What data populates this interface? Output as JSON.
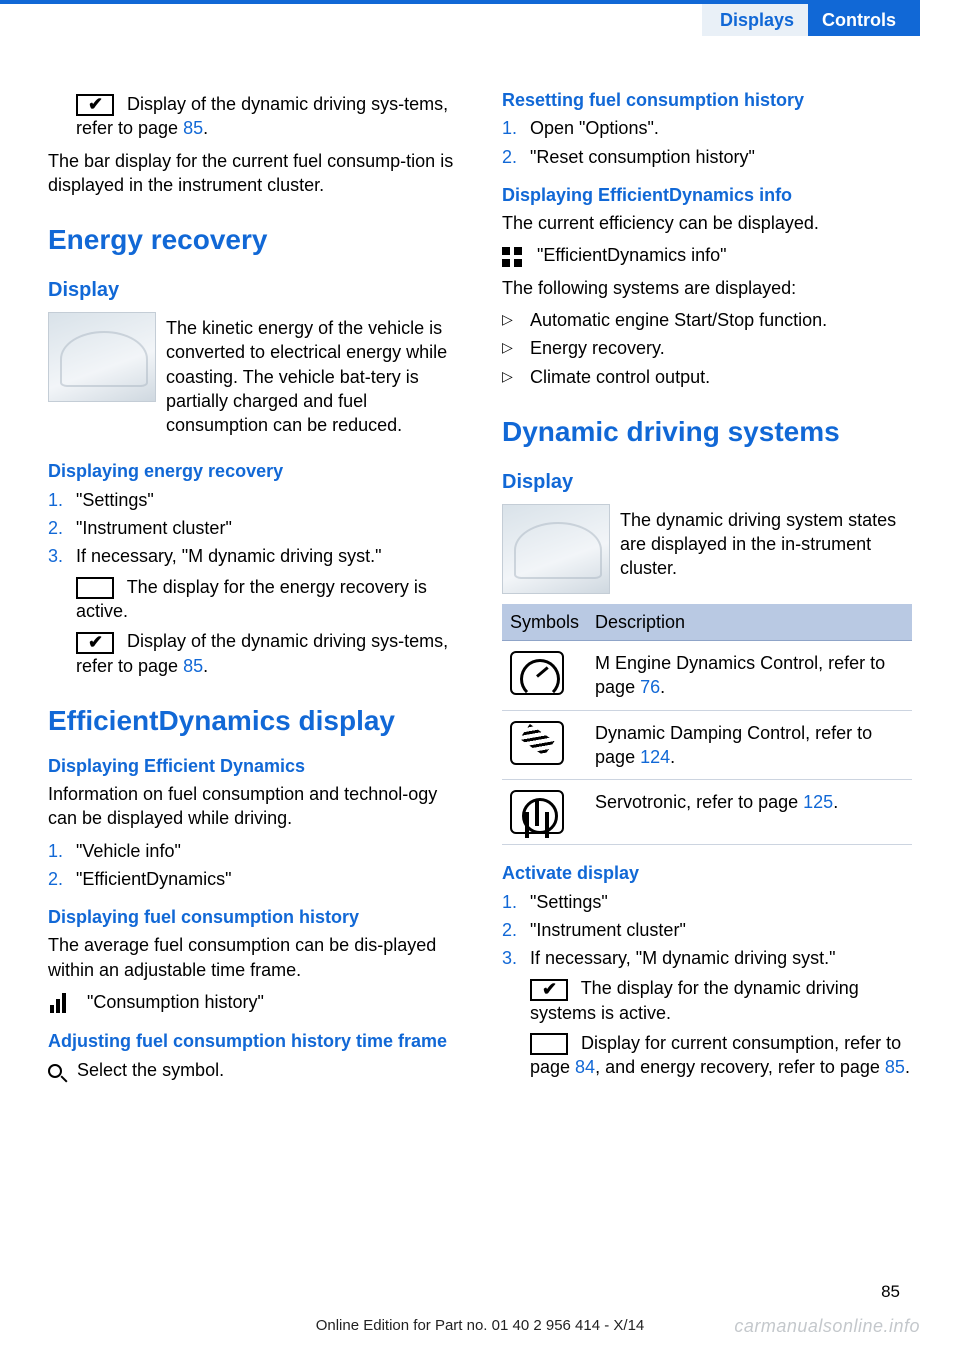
{
  "header": {
    "section": "Displays",
    "chapter": "Controls"
  },
  "left": {
    "intro_icon_text": "   Display of the dynamic driving sys‐tems, refer to page ",
    "intro_link": "85",
    "intro_after": ".",
    "bar_text": "The bar display for the current fuel consump‐tion is displayed in the instrument cluster.",
    "energy_h1": "Energy recovery",
    "display_h2": "Display",
    "display_body": "The kinetic energy of the vehicle is converted to electrical energy while coasting. The vehicle bat‐tery is partially charged and fuel consumption can be reduced.",
    "disp_er_h3": "Displaying energy recovery",
    "er_steps": [
      "\"Settings\"",
      "\"Instrument cluster\"",
      "If necessary, \"M dynamic driving syst.\""
    ],
    "er_sub1": "  The display for the energy recovery is active.",
    "er_sub2a": "   Display of the dynamic driving sys‐tems, refer to page ",
    "er_sub2_link": "85",
    "er_sub2b": ".",
    "effd_h1": "EfficientDynamics display",
    "effd_h3a": "Displaying Efficient Dynamics",
    "effd_body": "Information on fuel consumption and technol‐ogy can be displayed while driving.",
    "effd_steps": [
      "\"Vehicle info\"",
      "\"EfficientDynamics\""
    ],
    "fch_h3": "Displaying fuel consumption history",
    "fch_body": "The average fuel consumption can be dis‐played within an adjustable time frame.",
    "fch_item": "\"Consumption history\"",
    "adj_h3": "Adjusting fuel consumption history time frame",
    "adj_item": "Select the symbol."
  },
  "right": {
    "reset_h3": "Resetting fuel consumption history",
    "reset_steps": [
      "Open \"Options\".",
      "\"Reset consumption history\""
    ],
    "info_h3": "Displaying EfficientDynamics info",
    "info_line1": "The current efficiency can be displayed.",
    "info_item": "\"EfficientDynamics info\"",
    "info_line2": "The following systems are displayed:",
    "info_bullets": [
      "Automatic engine Start/Stop function.",
      "Energy recovery.",
      "Climate control output."
    ],
    "dds_h1": "Dynamic driving systems",
    "dds_h2": "Display",
    "dds_body": "The dynamic driving system states are displayed in the in‐strument cluster.",
    "tbl_h1": "Symbols",
    "tbl_h2": "Description",
    "tbl_rows": [
      {
        "desc_a": "M Engine Dynamics Control, refer to page ",
        "link": "76",
        "desc_b": "."
      },
      {
        "desc_a": "Dynamic Damping Control, refer to page ",
        "link": "124",
        "desc_b": "."
      },
      {
        "desc_a": "Servotronic, refer to page ",
        "link": "125",
        "desc_b": "."
      }
    ],
    "act_h3": "Activate display",
    "act_steps": [
      "\"Settings\"",
      "\"Instrument cluster\"",
      "If necessary, \"M dynamic driving syst.\""
    ],
    "act_sub1": "  The display for the dynamic driving systems is active.",
    "act_sub2a": "  Display for current consumption, refer to page ",
    "act_sub2_l1": "84",
    "act_sub2b": ", and energy recovery, refer to page ",
    "act_sub2_l2": "85",
    "act_sub2c": "."
  },
  "footer": "Online Edition for Part no. 01 40 2 956 414 - X/14",
  "watermark": "carmanualsonline.info",
  "page": "85"
}
